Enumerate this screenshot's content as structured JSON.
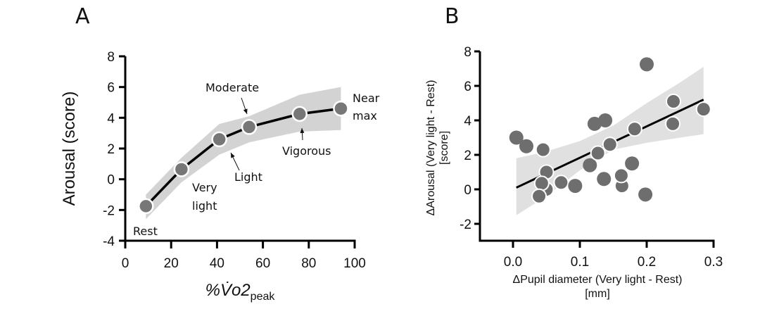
{
  "panels": {
    "a": {
      "letter": "A"
    },
    "b": {
      "letter": "B"
    }
  },
  "chart_data": [
    {
      "type": "line",
      "panel": "A",
      "title": "",
      "xlabel_main": "%V̇o2",
      "xlabel_sub": "peak",
      "ylabel": "Arousal (score)",
      "xlim": [
        0,
        100
      ],
      "ylim": [
        -4,
        8
      ],
      "xticks": [
        0,
        20,
        40,
        60,
        80,
        100
      ],
      "yticks": [
        -4,
        -2,
        0,
        2,
        4,
        6,
        8
      ],
      "grid": false,
      "colors": {
        "point": "#777777",
        "line": "#000000",
        "band": "#d3d3d3",
        "point_edge": "#ffffff"
      },
      "series": [
        {
          "name": "Arousal",
          "x": [
            9,
            24.5,
            41,
            54,
            76,
            94
          ],
          "y": [
            -1.75,
            0.65,
            2.6,
            3.4,
            4.25,
            4.6
          ],
          "labels": [
            "Rest",
            "Very light",
            "Light",
            "Moderate",
            "Vigorous",
            "Near max"
          ]
        }
      ],
      "band": {
        "x": [
          9,
          24.5,
          41,
          54,
          76,
          94
        ],
        "upper": [
          -1.0,
          1.4,
          3.6,
          4.1,
          5.5,
          6.0
        ],
        "lower": [
          -2.6,
          -0.2,
          1.6,
          2.4,
          3.1,
          3.2
        ]
      },
      "annotations": [
        {
          "text": "Rest",
          "point": 0
        },
        {
          "text": "Very",
          "text2": "light",
          "point": 1
        },
        {
          "text": "Light",
          "point": 2,
          "arrow": true
        },
        {
          "text": "Moderate",
          "point": 3,
          "arrow": true
        },
        {
          "text": "Vigorous",
          "point": 4,
          "arrow": true
        },
        {
          "text": "Near",
          "text2": "max",
          "point": 5
        }
      ]
    },
    {
      "type": "scatter",
      "panel": "B",
      "title": "",
      "xlabel": "ΔPupil diameter (Very light - Rest)",
      "xlabel2": "[mm]",
      "ylabel": "ΔArousal (Very light - Rest)",
      "ylabel2": "[score]",
      "xlim": [
        -0.05,
        0.3
      ],
      "ylim": [
        -3,
        8
      ],
      "xticks": [
        "0.0",
        "0.1",
        "0.2",
        "0.3"
      ],
      "xtick_values": [
        0.0,
        0.1,
        0.2,
        0.3
      ],
      "yticks": [
        -2,
        0,
        2,
        4,
        6,
        8
      ],
      "grid": false,
      "colors": {
        "point": "#6e6e6e",
        "line": "#000000",
        "band": "#e0e0e0",
        "point_edge": "#ffffff"
      },
      "points": [
        {
          "x": 0.005,
          "y": 3.0,
          "edge": false
        },
        {
          "x": 0.02,
          "y": 2.5,
          "edge": false
        },
        {
          "x": 0.045,
          "y": 2.3,
          "edge": true
        },
        {
          "x": 0.05,
          "y": 1.0,
          "edge": true
        },
        {
          "x": 0.05,
          "y": 0.0,
          "edge": true
        },
        {
          "x": 0.043,
          "y": 0.35,
          "edge": true
        },
        {
          "x": 0.039,
          "y": -0.4,
          "edge": true
        },
        {
          "x": 0.072,
          "y": 0.4,
          "edge": true
        },
        {
          "x": 0.093,
          "y": 0.2,
          "edge": false
        },
        {
          "x": 0.115,
          "y": 1.4,
          "edge": false
        },
        {
          "x": 0.122,
          "y": 3.8,
          "edge": false
        },
        {
          "x": 0.138,
          "y": 4.0,
          "edge": false
        },
        {
          "x": 0.127,
          "y": 2.1,
          "edge": true
        },
        {
          "x": 0.145,
          "y": 2.6,
          "edge": true
        },
        {
          "x": 0.136,
          "y": 0.6,
          "edge": false
        },
        {
          "x": 0.163,
          "y": 0.2,
          "edge": true
        },
        {
          "x": 0.162,
          "y": 0.8,
          "edge": true
        },
        {
          "x": 0.178,
          "y": 1.5,
          "edge": false
        },
        {
          "x": 0.182,
          "y": 3.5,
          "edge": true
        },
        {
          "x": 0.2,
          "y": 7.25,
          "edge": false
        },
        {
          "x": 0.198,
          "y": -0.3,
          "edge": false
        },
        {
          "x": 0.24,
          "y": 5.1,
          "edge": true
        },
        {
          "x": 0.239,
          "y": 3.8,
          "edge": true
        },
        {
          "x": 0.285,
          "y": 4.65,
          "edge": true
        }
      ],
      "regression": {
        "x": [
          0.005,
          0.285
        ],
        "y": [
          0.1,
          5.2
        ]
      },
      "band": {
        "x": [
          0.005,
          0.05,
          0.1,
          0.15,
          0.2,
          0.25,
          0.285
        ],
        "upper": [
          1.8,
          2.2,
          2.8,
          3.7,
          5.0,
          6.2,
          7.1
        ],
        "lower": [
          -1.5,
          -0.4,
          1.1,
          2.3,
          2.7,
          3.0,
          3.2
        ]
      }
    }
  ]
}
